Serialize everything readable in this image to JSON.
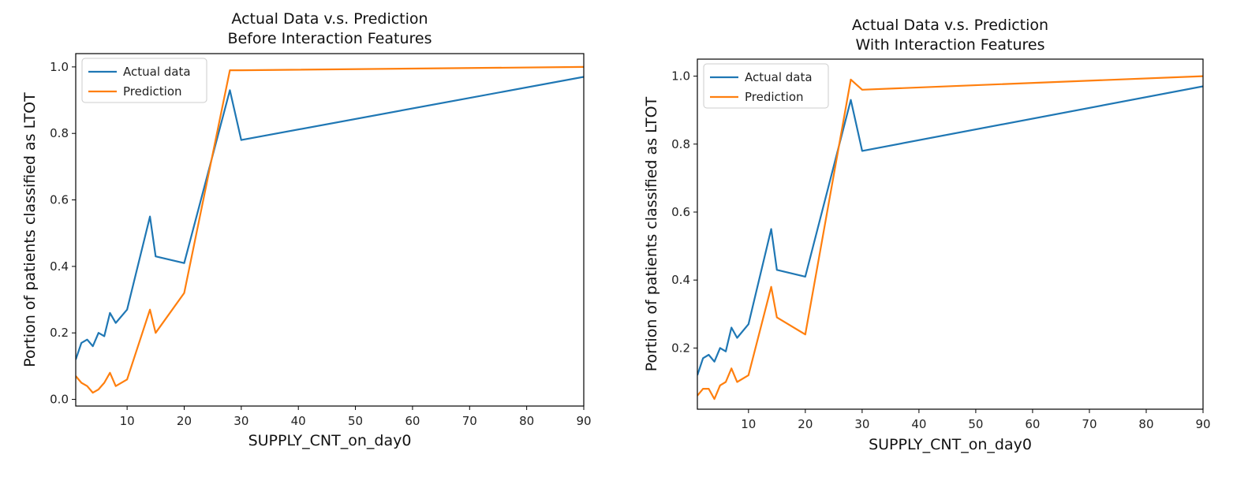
{
  "colors": {
    "actual": "#1f77b4",
    "prediction": "#ff7f0e"
  },
  "chart_data": [
    {
      "type": "line",
      "title": [
        "Actual Data v.s. Prediction",
        "Before Interaction Features"
      ],
      "xlabel": "SUPPLY_CNT_on_day0",
      "ylabel": "Portion of patients classified as LTOT",
      "xlim": [
        1,
        90
      ],
      "ylim": [
        -0.02,
        1.04
      ],
      "xticks": [
        10,
        20,
        30,
        40,
        50,
        60,
        70,
        80,
        90
      ],
      "yticks": [
        0.0,
        0.2,
        0.4,
        0.6,
        0.8,
        1.0
      ],
      "yticklabels": [
        "0.0",
        "0.2",
        "0.4",
        "0.6",
        "0.8",
        "1.0"
      ],
      "legend": "top-left",
      "x": [
        1,
        2,
        3,
        4,
        5,
        6,
        7,
        8,
        10,
        14,
        15,
        20,
        28,
        30,
        90
      ],
      "series": [
        {
          "name": "Actual data",
          "values": [
            0.12,
            0.17,
            0.18,
            0.16,
            0.2,
            0.19,
            0.26,
            0.23,
            0.27,
            0.55,
            0.43,
            0.41,
            0.93,
            0.78,
            0.97
          ]
        },
        {
          "name": "Prediction",
          "values": [
            0.07,
            0.05,
            0.04,
            0.02,
            0.03,
            0.05,
            0.08,
            0.04,
            0.06,
            0.27,
            0.2,
            0.32,
            0.99,
            0.99,
            1.0
          ]
        }
      ]
    },
    {
      "type": "line",
      "title": [
        "Actual Data v.s. Prediction",
        "With Interaction Features"
      ],
      "xlabel": "SUPPLY_CNT_on_day0",
      "ylabel": "Portion of patients classified as LTOT",
      "xlim": [
        1,
        90
      ],
      "ylim": [
        0.02,
        1.05
      ],
      "xticks": [
        10,
        20,
        30,
        40,
        50,
        60,
        70,
        80,
        90
      ],
      "yticks": [
        0.2,
        0.4,
        0.6,
        0.8,
        1.0
      ],
      "yticklabels": [
        "0.2",
        "0.4",
        "0.6",
        "0.8",
        "1.0"
      ],
      "legend": "top-left",
      "x": [
        1,
        2,
        3,
        4,
        5,
        6,
        7,
        8,
        10,
        14,
        15,
        20,
        28,
        30,
        90
      ],
      "series": [
        {
          "name": "Actual data",
          "values": [
            0.12,
            0.17,
            0.18,
            0.16,
            0.2,
            0.19,
            0.26,
            0.23,
            0.27,
            0.55,
            0.43,
            0.41,
            0.93,
            0.78,
            0.97
          ]
        },
        {
          "name": "Prediction",
          "values": [
            0.06,
            0.08,
            0.08,
            0.05,
            0.09,
            0.1,
            0.14,
            0.1,
            0.12,
            0.38,
            0.29,
            0.24,
            0.99,
            0.96,
            1.0
          ]
        }
      ]
    }
  ]
}
